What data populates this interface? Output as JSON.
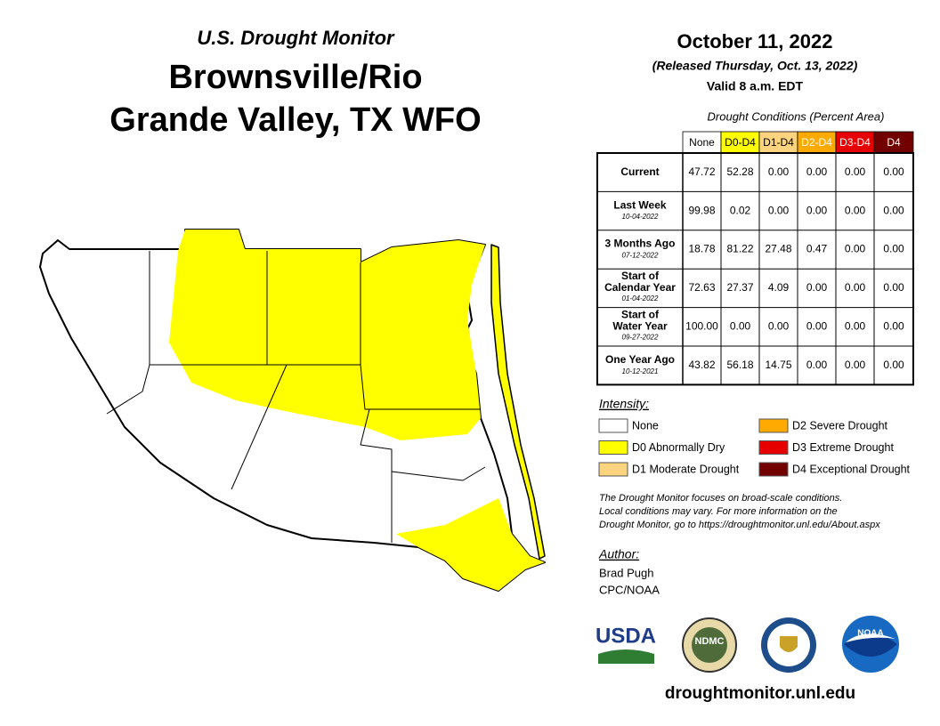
{
  "header": {
    "subtitle": "U.S. Drought Monitor",
    "title_lines": [
      "Brownsville/Rio",
      "Grande Valley, TX WFO"
    ]
  },
  "date": {
    "main": "October 11, 2022",
    "released": "(Released Thursday, Oct. 13, 2022)",
    "valid": "Valid 8 a.m. EDT"
  },
  "table": {
    "caption": "Drought Conditions (Percent Area)",
    "columns": [
      "None",
      "D0-D4",
      "D1-D4",
      "D2-D4",
      "D3-D4",
      "D4"
    ],
    "rows": [
      {
        "label": [
          "Current"
        ],
        "date": "",
        "values": [
          "47.72",
          "52.28",
          "0.00",
          "0.00",
          "0.00",
          "0.00"
        ]
      },
      {
        "label": [
          "Last Week"
        ],
        "date": "10-04-2022",
        "values": [
          "99.98",
          "0.02",
          "0.00",
          "0.00",
          "0.00",
          "0.00"
        ]
      },
      {
        "label": [
          "3 Months Ago"
        ],
        "date": "07-12-2022",
        "values": [
          "18.78",
          "81.22",
          "27.48",
          "0.47",
          "0.00",
          "0.00"
        ]
      },
      {
        "label": [
          "Start of",
          "Calendar Year"
        ],
        "date": "01-04-2022",
        "values": [
          "72.63",
          "27.37",
          "4.09",
          "0.00",
          "0.00",
          "0.00"
        ]
      },
      {
        "label": [
          "Start of",
          "Water Year"
        ],
        "date": "09-27-2022",
        "values": [
          "100.00",
          "0.00",
          "0.00",
          "0.00",
          "0.00",
          "0.00"
        ]
      },
      {
        "label": [
          "One Year Ago"
        ],
        "date": "10-12-2021",
        "values": [
          "43.82",
          "56.18",
          "14.75",
          "0.00",
          "0.00",
          "0.00"
        ]
      }
    ]
  },
  "legend": {
    "title": "Intensity:",
    "items": [
      "None",
      "D0 Abnormally Dry",
      "D1 Moderate Drought",
      "D2 Severe Drought",
      "D3 Extreme Drought",
      "D4 Exceptional Drought"
    ]
  },
  "note": [
    "The Drought Monitor focuses on broad-scale conditions.",
    "Local conditions may vary. For more information on the",
    "Drought Monitor, go to https://droughtmonitor.unl.edu/About.aspx"
  ],
  "author": {
    "title": "Author:",
    "lines": [
      "Brad Pugh",
      "CPC/NOAA"
    ]
  },
  "logos": {
    "usda": "USDA",
    "ndmc": "NDMC",
    "noaa": "NOAA"
  },
  "url": "droughtmonitor.unl.edu"
}
